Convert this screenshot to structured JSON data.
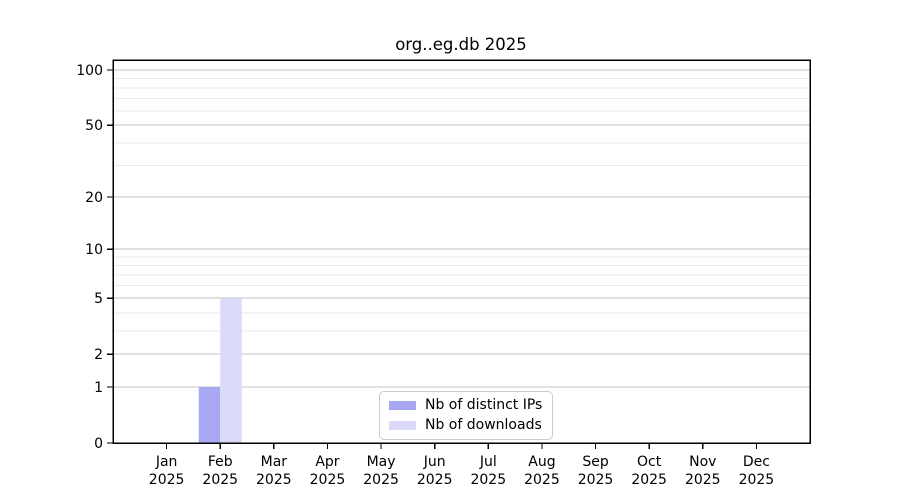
{
  "chart_data": {
    "type": "bar",
    "title": "org..eg.db 2025",
    "x_months": [
      "Jan",
      "Feb",
      "Mar",
      "Apr",
      "May",
      "Jun",
      "Jul",
      "Aug",
      "Sep",
      "Oct",
      "Nov",
      "Dec"
    ],
    "x_year": "2025",
    "series": [
      {
        "name": "Nb of distinct IPs",
        "color": "#a8a8f2",
        "values": [
          0,
          1,
          0,
          0,
          0,
          0,
          0,
          0,
          0,
          0,
          0,
          0
        ]
      },
      {
        "name": "Nb of downloads",
        "color": "#dbdbf9",
        "values": [
          0,
          5,
          0,
          0,
          0,
          0,
          0,
          0,
          0,
          0,
          0,
          0
        ]
      }
    ],
    "y_scale": "log1p",
    "y_major_ticks": [
      0,
      1,
      2,
      5,
      10,
      20,
      50,
      100
    ],
    "y_minor_gridlines": [
      3,
      4,
      6,
      7,
      8,
      9,
      30,
      40,
      60,
      70,
      80,
      90
    ],
    "ylim": [
      0,
      113
    ],
    "grid": "horizontal-only",
    "legend_position": "lower center"
  }
}
